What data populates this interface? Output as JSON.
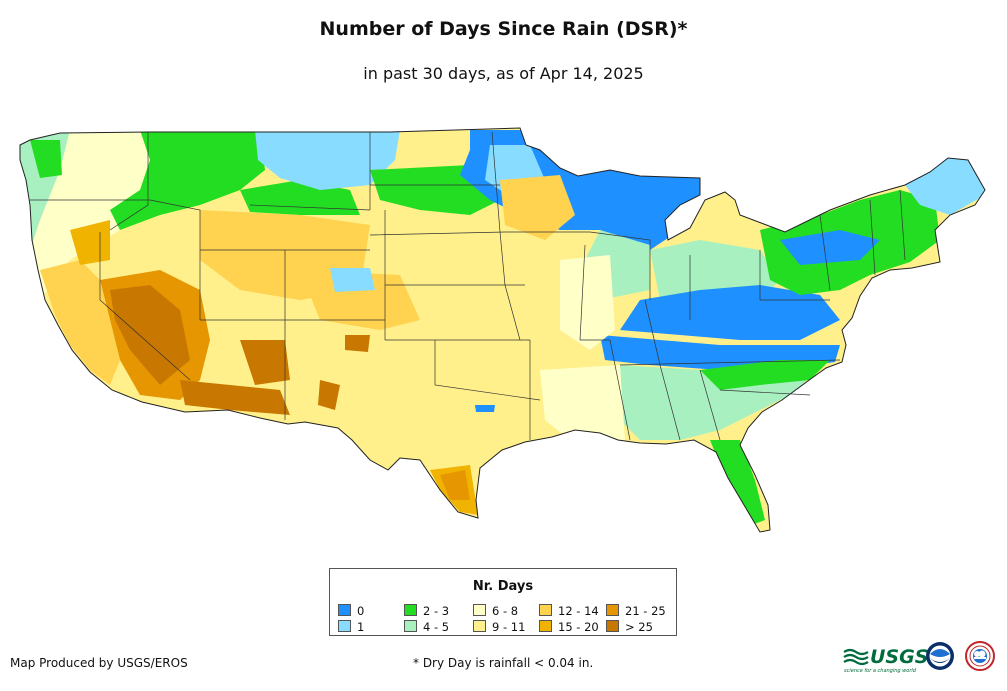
{
  "title": "Number of Days Since Rain (DSR)*",
  "subtitle": "in past 30 days, as of Apr 14, 2025",
  "legend": {
    "title": "Nr. Days",
    "items": [
      {
        "label": "0",
        "color": "#1e90ff"
      },
      {
        "label": "1",
        "color": "#87dcff"
      },
      {
        "label": "2 - 3",
        "color": "#22dd22"
      },
      {
        "label": "4 - 5",
        "color": "#a8f0c0"
      },
      {
        "label": "6 - 8",
        "color": "#ffffc8"
      },
      {
        "label": "9 - 11",
        "color": "#fff08c"
      },
      {
        "label": "12 - 14",
        "color": "#ffd250"
      },
      {
        "label": "15 - 20",
        "color": "#f0b400"
      },
      {
        "label": "21 - 25",
        "color": "#e69600"
      },
      {
        "label": "> 25",
        "color": "#c87800"
      }
    ]
  },
  "footer": {
    "credit": "Map Produced by USGS/EROS",
    "note": "* Dry Day is rainfall < 0.04 in."
  },
  "logos": {
    "usgs": "USGS",
    "usgs_tagline": "science for a changing world",
    "noaa": "NOAA",
    "nws_icon": "national-weather-service-icon"
  }
}
